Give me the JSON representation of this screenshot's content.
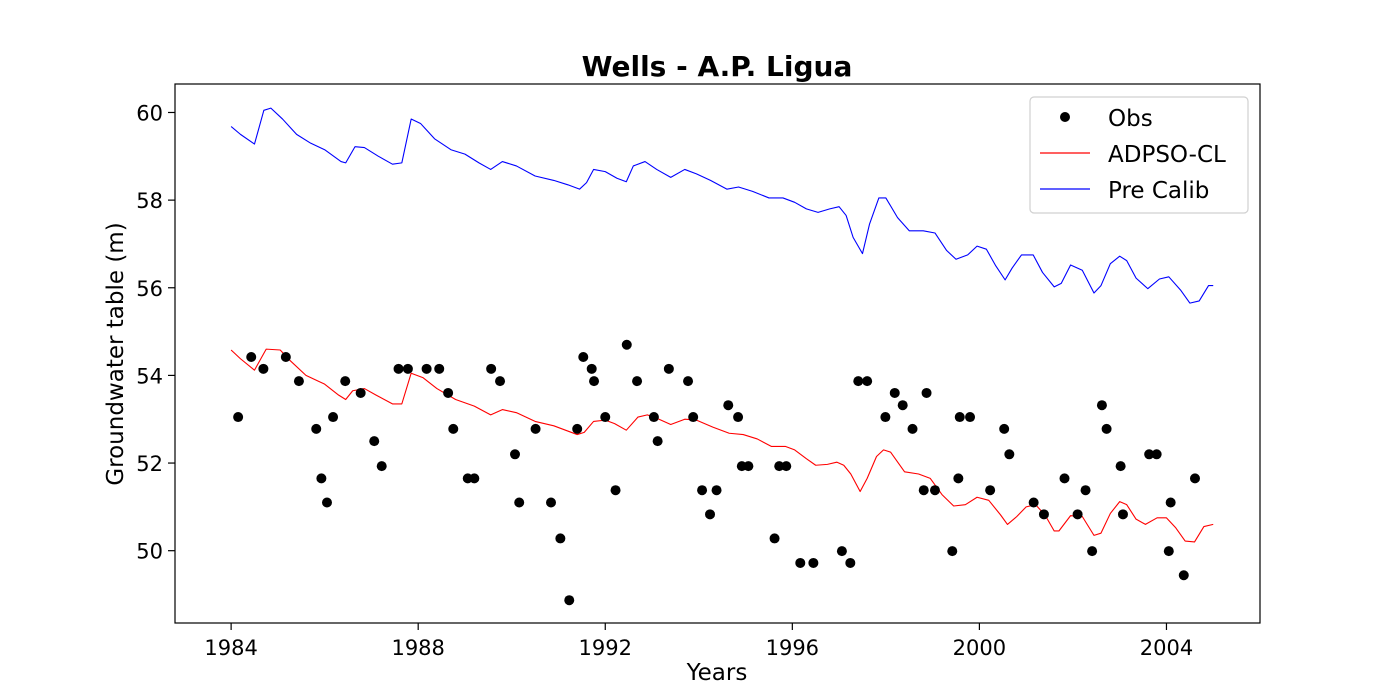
{
  "chart_data": {
    "type": "line",
    "title": "Wells - A.P. Ligua",
    "xlabel": "Years",
    "ylabel": "Groundwater table (m)",
    "xlim": [
      1982.8,
      2006.0
    ],
    "ylim": [
      48.35,
      60.65
    ],
    "x_ticks": [
      1984,
      1988,
      1992,
      1996,
      2000,
      2004
    ],
    "x_tick_labels": [
      "1984",
      "1988",
      "1992",
      "1996",
      "2000",
      "2004"
    ],
    "y_ticks": [
      50,
      52,
      54,
      56,
      58,
      60
    ],
    "y_tick_labels": [
      "50",
      "52",
      "54",
      "56",
      "58",
      "60"
    ],
    "grid": false,
    "legend_position": "top-right",
    "legend": [
      "Obs",
      "ADPSO-CL",
      "Pre Calib"
    ],
    "series": [
      {
        "name": "Obs",
        "kind": "scatter",
        "color": "#000000",
        "points": [
          [
            1984.15,
            53.05
          ],
          [
            1984.43,
            54.42
          ],
          [
            1984.69,
            54.15
          ],
          [
            1985.17,
            54.42
          ],
          [
            1985.45,
            53.87
          ],
          [
            1985.82,
            52.78
          ],
          [
            1985.93,
            51.65
          ],
          [
            1986.05,
            51.1
          ],
          [
            1986.18,
            53.05
          ],
          [
            1986.44,
            53.87
          ],
          [
            1986.77,
            53.6
          ],
          [
            1987.06,
            52.5
          ],
          [
            1987.22,
            51.93
          ],
          [
            1987.58,
            54.15
          ],
          [
            1987.78,
            54.15
          ],
          [
            1988.18,
            54.15
          ],
          [
            1988.45,
            54.15
          ],
          [
            1988.64,
            53.6
          ],
          [
            1988.75,
            52.78
          ],
          [
            1989.06,
            51.65
          ],
          [
            1989.2,
            51.65
          ],
          [
            1989.56,
            54.15
          ],
          [
            1989.75,
            53.87
          ],
          [
            1990.07,
            52.2
          ],
          [
            1990.16,
            51.1
          ],
          [
            1990.51,
            52.78
          ],
          [
            1990.84,
            51.1
          ],
          [
            1991.04,
            50.28
          ],
          [
            1991.23,
            48.87
          ],
          [
            1991.4,
            52.78
          ],
          [
            1991.53,
            54.42
          ],
          [
            1991.71,
            54.15
          ],
          [
            1991.76,
            53.87
          ],
          [
            1992.0,
            53.05
          ],
          [
            1992.22,
            51.38
          ],
          [
            1992.46,
            54.7
          ],
          [
            1992.68,
            53.87
          ],
          [
            1993.04,
            53.05
          ],
          [
            1993.12,
            52.5
          ],
          [
            1993.36,
            54.15
          ],
          [
            1993.77,
            53.87
          ],
          [
            1993.88,
            53.05
          ],
          [
            1994.07,
            51.38
          ],
          [
            1994.24,
            50.83
          ],
          [
            1994.38,
            51.38
          ],
          [
            1994.63,
            53.32
          ],
          [
            1994.84,
            53.05
          ],
          [
            1994.92,
            51.93
          ],
          [
            1995.06,
            51.93
          ],
          [
            1995.62,
            50.28
          ],
          [
            1995.72,
            51.93
          ],
          [
            1995.87,
            51.93
          ],
          [
            1996.17,
            49.72
          ],
          [
            1996.45,
            49.72
          ],
          [
            1997.06,
            49.99
          ],
          [
            1997.24,
            49.72
          ],
          [
            1997.41,
            53.87
          ],
          [
            1997.6,
            53.87
          ],
          [
            1997.99,
            53.05
          ],
          [
            1998.19,
            53.6
          ],
          [
            1998.36,
            53.32
          ],
          [
            1998.57,
            52.78
          ],
          [
            1998.81,
            51.38
          ],
          [
            1998.87,
            53.6
          ],
          [
            1999.05,
            51.38
          ],
          [
            1999.42,
            49.99
          ],
          [
            1999.55,
            51.65
          ],
          [
            1999.58,
            53.05
          ],
          [
            1999.8,
            53.05
          ],
          [
            2000.23,
            51.38
          ],
          [
            2000.53,
            52.78
          ],
          [
            2000.64,
            52.2
          ],
          [
            2001.16,
            51.1
          ],
          [
            2001.38,
            50.83
          ],
          [
            2001.82,
            51.65
          ],
          [
            2002.1,
            50.83
          ],
          [
            2002.27,
            51.38
          ],
          [
            2002.41,
            49.99
          ],
          [
            2002.62,
            53.32
          ],
          [
            2002.72,
            52.78
          ],
          [
            2003.02,
            51.93
          ],
          [
            2003.07,
            50.83
          ],
          [
            2003.63,
            52.2
          ],
          [
            2003.79,
            52.2
          ],
          [
            2004.05,
            49.99
          ],
          [
            2004.09,
            51.1
          ],
          [
            2004.37,
            49.44
          ],
          [
            2004.61,
            51.65
          ]
        ]
      },
      {
        "name": "ADPSO-CL",
        "kind": "line",
        "color": "#ff0000",
        "points": [
          [
            1984.0,
            54.58
          ],
          [
            1984.2,
            54.38
          ],
          [
            1984.5,
            54.12
          ],
          [
            1984.75,
            54.6
          ],
          [
            1985.05,
            54.58
          ],
          [
            1985.25,
            54.35
          ],
          [
            1985.6,
            54.0
          ],
          [
            1986.0,
            53.8
          ],
          [
            1986.3,
            53.55
          ],
          [
            1986.45,
            53.45
          ],
          [
            1986.6,
            53.65
          ],
          [
            1986.85,
            53.7
          ],
          [
            1987.1,
            53.55
          ],
          [
            1987.45,
            53.35
          ],
          [
            1987.65,
            53.35
          ],
          [
            1987.85,
            54.05
          ],
          [
            1988.1,
            53.95
          ],
          [
            1988.4,
            53.7
          ],
          [
            1988.8,
            53.45
          ],
          [
            1989.2,
            53.3
          ],
          [
            1989.55,
            53.1
          ],
          [
            1989.8,
            53.22
          ],
          [
            1990.1,
            53.15
          ],
          [
            1990.5,
            52.95
          ],
          [
            1990.9,
            52.85
          ],
          [
            1991.15,
            52.75
          ],
          [
            1991.4,
            52.65
          ],
          [
            1991.55,
            52.7
          ],
          [
            1991.75,
            52.95
          ],
          [
            1992.0,
            52.98
          ],
          [
            1992.2,
            52.9
          ],
          [
            1992.45,
            52.75
          ],
          [
            1992.7,
            53.05
          ],
          [
            1992.9,
            53.1
          ],
          [
            1993.15,
            53.0
          ],
          [
            1993.4,
            52.88
          ],
          [
            1993.7,
            53.0
          ],
          [
            1993.95,
            52.98
          ],
          [
            1994.3,
            52.82
          ],
          [
            1994.65,
            52.68
          ],
          [
            1994.95,
            52.65
          ],
          [
            1995.25,
            52.55
          ],
          [
            1995.55,
            52.38
          ],
          [
            1995.85,
            52.38
          ],
          [
            1996.05,
            52.3
          ],
          [
            1996.3,
            52.1
          ],
          [
            1996.5,
            51.95
          ],
          [
            1996.75,
            51.97
          ],
          [
            1996.95,
            52.02
          ],
          [
            1997.1,
            51.95
          ],
          [
            1997.25,
            51.75
          ],
          [
            1997.45,
            51.35
          ],
          [
            1997.6,
            51.65
          ],
          [
            1997.8,
            52.15
          ],
          [
            1997.95,
            52.3
          ],
          [
            1998.1,
            52.25
          ],
          [
            1998.4,
            51.8
          ],
          [
            1998.7,
            51.75
          ],
          [
            1998.95,
            51.65
          ],
          [
            1999.2,
            51.28
          ],
          [
            1999.45,
            51.02
          ],
          [
            1999.7,
            51.05
          ],
          [
            1999.95,
            51.22
          ],
          [
            2000.2,
            51.15
          ],
          [
            2000.45,
            50.82
          ],
          [
            2000.6,
            50.6
          ],
          [
            2000.8,
            50.78
          ],
          [
            2001.0,
            51.0
          ],
          [
            2001.2,
            51.05
          ],
          [
            2001.4,
            50.82
          ],
          [
            2001.6,
            50.45
          ],
          [
            2001.7,
            50.45
          ],
          [
            2001.95,
            50.8
          ],
          [
            2002.2,
            50.78
          ],
          [
            2002.45,
            50.35
          ],
          [
            2002.6,
            50.4
          ],
          [
            2002.8,
            50.85
          ],
          [
            2003.0,
            51.12
          ],
          [
            2003.15,
            51.05
          ],
          [
            2003.35,
            50.72
          ],
          [
            2003.55,
            50.6
          ],
          [
            2003.8,
            50.75
          ],
          [
            2004.0,
            50.75
          ],
          [
            2004.2,
            50.52
          ],
          [
            2004.4,
            50.22
          ],
          [
            2004.6,
            50.2
          ],
          [
            2004.8,
            50.55
          ],
          [
            2005.0,
            50.6
          ]
        ]
      },
      {
        "name": "Pre Calib",
        "kind": "line",
        "color": "#0000ff",
        "points": [
          [
            1984.0,
            59.68
          ],
          [
            1984.2,
            59.5
          ],
          [
            1984.5,
            59.28
          ],
          [
            1984.7,
            60.05
          ],
          [
            1984.85,
            60.1
          ],
          [
            1985.1,
            59.85
          ],
          [
            1985.4,
            59.5
          ],
          [
            1985.7,
            59.3
          ],
          [
            1986.0,
            59.15
          ],
          [
            1986.35,
            58.88
          ],
          [
            1986.45,
            58.85
          ],
          [
            1986.65,
            59.22
          ],
          [
            1986.85,
            59.2
          ],
          [
            1987.15,
            59.0
          ],
          [
            1987.45,
            58.82
          ],
          [
            1987.65,
            58.85
          ],
          [
            1987.85,
            59.85
          ],
          [
            1988.05,
            59.75
          ],
          [
            1988.35,
            59.4
          ],
          [
            1988.7,
            59.15
          ],
          [
            1989.0,
            59.05
          ],
          [
            1989.3,
            58.85
          ],
          [
            1989.55,
            58.7
          ],
          [
            1989.8,
            58.88
          ],
          [
            1990.1,
            58.78
          ],
          [
            1990.5,
            58.55
          ],
          [
            1990.9,
            58.45
          ],
          [
            1991.2,
            58.35
          ],
          [
            1991.45,
            58.25
          ],
          [
            1991.6,
            58.4
          ],
          [
            1991.75,
            58.7
          ],
          [
            1992.0,
            58.65
          ],
          [
            1992.25,
            58.5
          ],
          [
            1992.45,
            58.42
          ],
          [
            1992.6,
            58.78
          ],
          [
            1992.85,
            58.88
          ],
          [
            1993.1,
            58.7
          ],
          [
            1993.4,
            58.52
          ],
          [
            1993.7,
            58.7
          ],
          [
            1993.95,
            58.6
          ],
          [
            1994.25,
            58.45
          ],
          [
            1994.6,
            58.25
          ],
          [
            1994.85,
            58.3
          ],
          [
            1995.15,
            58.2
          ],
          [
            1995.5,
            58.05
          ],
          [
            1995.8,
            58.05
          ],
          [
            1996.05,
            57.95
          ],
          [
            1996.3,
            57.8
          ],
          [
            1996.55,
            57.72
          ],
          [
            1996.8,
            57.8
          ],
          [
            1997.0,
            57.85
          ],
          [
            1997.15,
            57.65
          ],
          [
            1997.3,
            57.15
          ],
          [
            1997.5,
            56.78
          ],
          [
            1997.65,
            57.45
          ],
          [
            1997.85,
            58.05
          ],
          [
            1998.0,
            58.05
          ],
          [
            1998.25,
            57.6
          ],
          [
            1998.5,
            57.3
          ],
          [
            1998.8,
            57.3
          ],
          [
            1999.05,
            57.25
          ],
          [
            1999.3,
            56.85
          ],
          [
            1999.5,
            56.65
          ],
          [
            1999.75,
            56.75
          ],
          [
            1999.95,
            56.95
          ],
          [
            2000.15,
            56.88
          ],
          [
            2000.35,
            56.5
          ],
          [
            2000.55,
            56.18
          ],
          [
            2000.7,
            56.45
          ],
          [
            2000.9,
            56.75
          ],
          [
            2001.15,
            56.75
          ],
          [
            2001.35,
            56.35
          ],
          [
            2001.6,
            56.02
          ],
          [
            2001.75,
            56.1
          ],
          [
            2001.95,
            56.52
          ],
          [
            2002.2,
            56.4
          ],
          [
            2002.45,
            55.88
          ],
          [
            2002.6,
            56.05
          ],
          [
            2002.8,
            56.55
          ],
          [
            2003.0,
            56.72
          ],
          [
            2003.15,
            56.62
          ],
          [
            2003.35,
            56.22
          ],
          [
            2003.6,
            55.98
          ],
          [
            2003.85,
            56.2
          ],
          [
            2004.05,
            56.25
          ],
          [
            2004.3,
            55.95
          ],
          [
            2004.5,
            55.65
          ],
          [
            2004.7,
            55.7
          ],
          [
            2004.9,
            56.05
          ],
          [
            2005.0,
            56.05
          ]
        ]
      }
    ]
  }
}
